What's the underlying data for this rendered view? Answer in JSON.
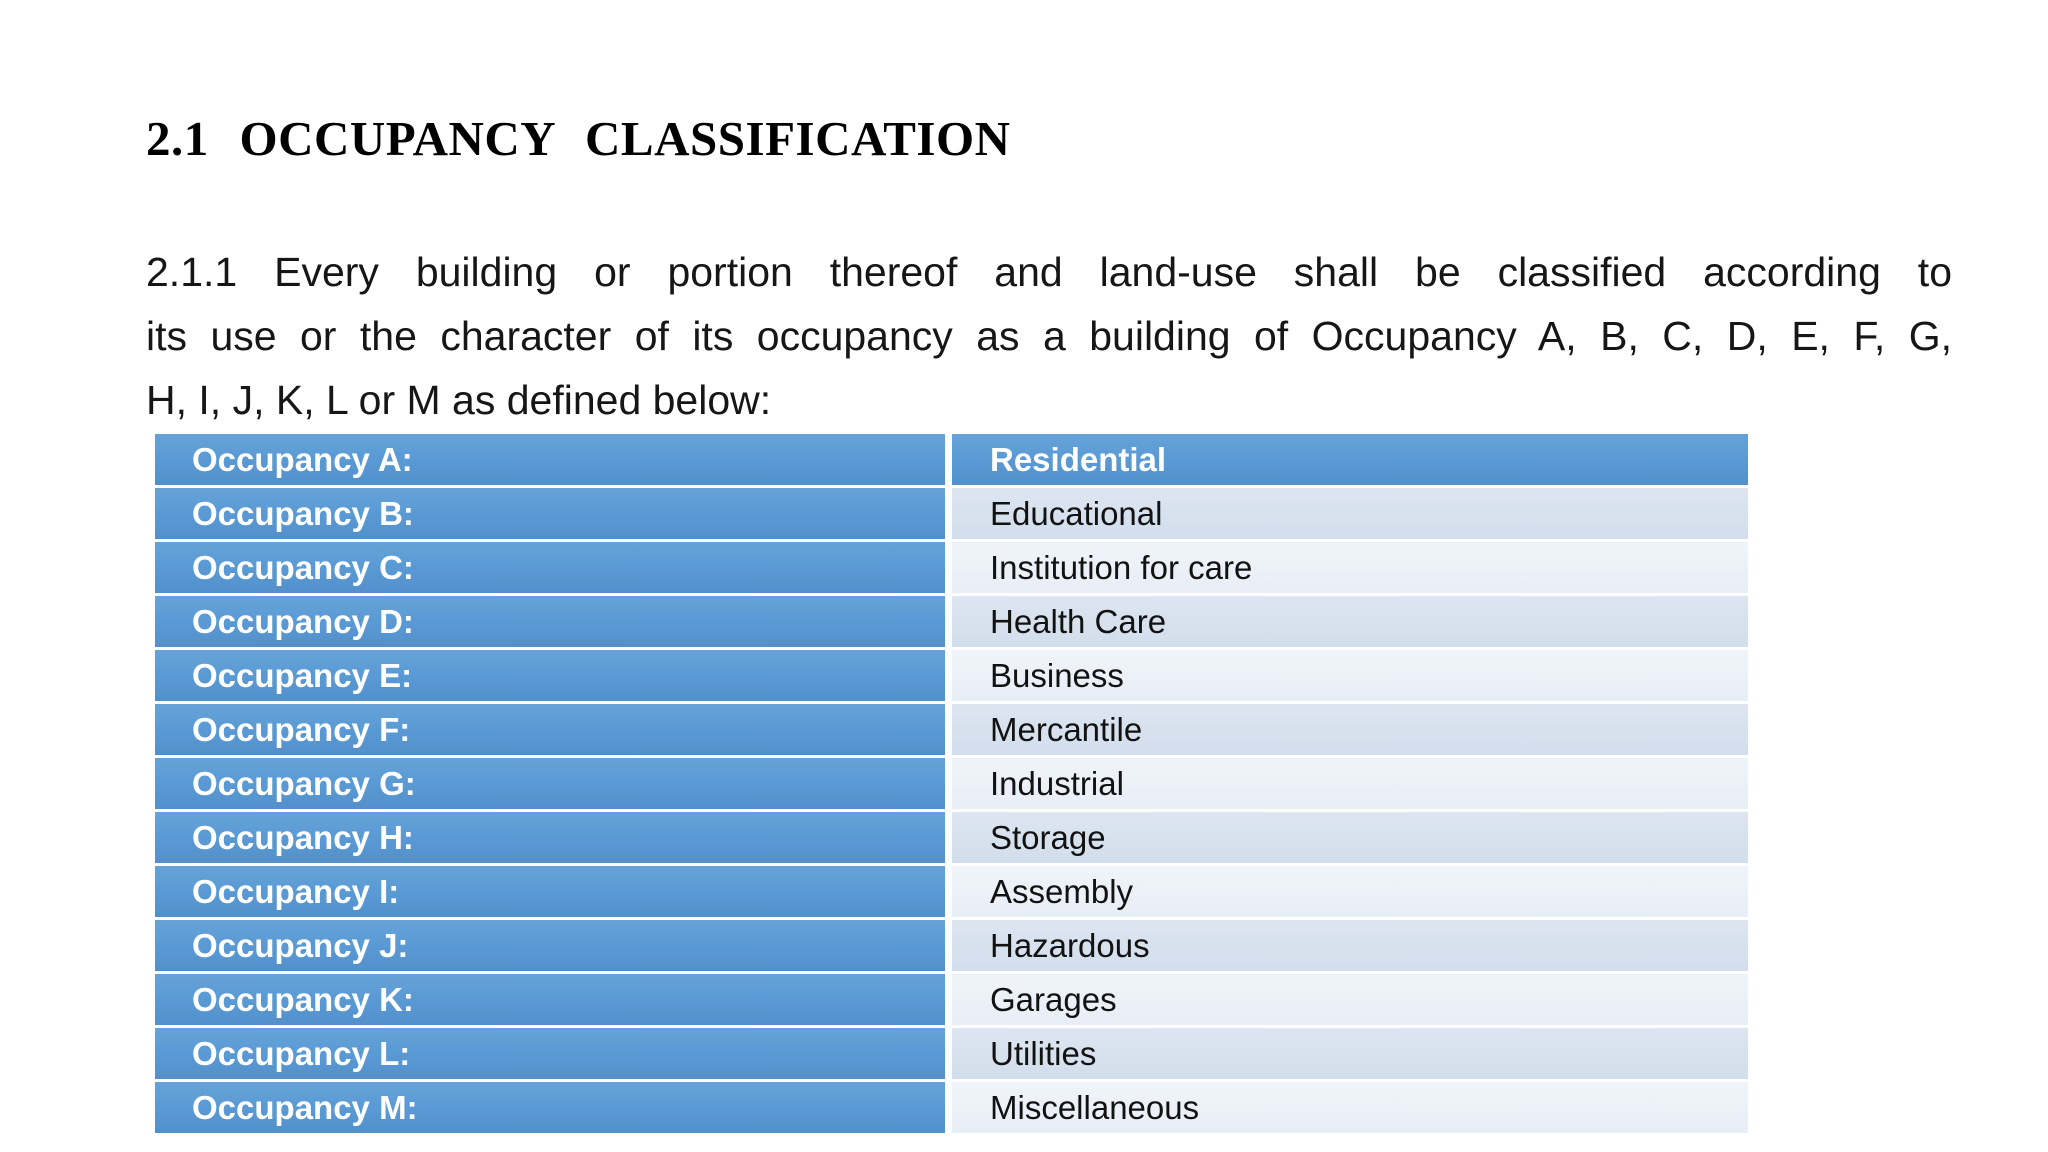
{
  "page": {
    "heading": "2.1 OCCUPANCY CLASSIFICATION",
    "paragraph_lines": [
      "2.1.1 Every building or portion thereof and land-use shall be classified according to",
      "its use or the character of its occupancy as a building of Occupancy A, B, C, D, E, F, G,",
      "H, I, J, K, L or M as defined below:"
    ]
  },
  "colors": {
    "header_blue": "#5b9bd5",
    "header_blue_top": "#66a2d8",
    "header_blue_bottom": "#5390cb",
    "band_dark": "#d2deec",
    "band_dark_top": "#dde5f1",
    "band_light": "#e8eef6",
    "band_light_top": "#f0f4fa"
  },
  "table": {
    "rows": [
      {
        "label": "Occupancy A:",
        "value": "Residential"
      },
      {
        "label": "Occupancy B:",
        "value": "Educational"
      },
      {
        "label": "Occupancy C:",
        "value": "Institution for care"
      },
      {
        "label": "Occupancy D:",
        "value": "Health Care"
      },
      {
        "label": "Occupancy E:",
        "value": "Business"
      },
      {
        "label": "Occupancy F:",
        "value": "Mercantile"
      },
      {
        "label": "Occupancy G:",
        "value": "Industrial"
      },
      {
        "label": "Occupancy H:",
        "value": "Storage"
      },
      {
        "label": "Occupancy I:",
        "value": "Assembly"
      },
      {
        "label": "Occupancy J:",
        "value": "Hazardous"
      },
      {
        "label": "Occupancy K:",
        "value": "Garages"
      },
      {
        "label": "Occupancy L:",
        "value": "Utilities"
      },
      {
        "label": "Occupancy M:",
        "value": "Miscellaneous"
      }
    ]
  }
}
